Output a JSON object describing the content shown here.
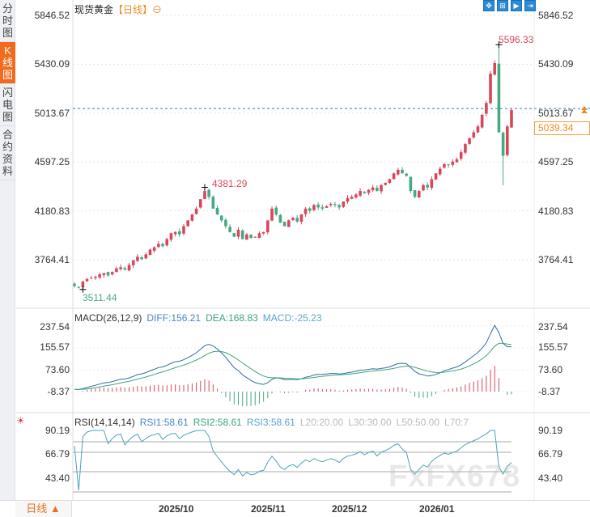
{
  "sidebar": {
    "tabs": [
      {
        "label": [
          "分",
          "时",
          "图"
        ]
      },
      {
        "label": [
          "K",
          "线",
          "图"
        ],
        "active": true
      },
      {
        "label": [
          "闪",
          "电",
          "图"
        ]
      },
      {
        "label": [
          "合",
          "约",
          "资",
          "料"
        ]
      }
    ]
  },
  "header": {
    "name": "现货黄金",
    "period": "【日线】",
    "period_icon": "⊖",
    "icons": [
      "move-icon",
      "zoom-fit-icon",
      "step-icon",
      "scroll-end-icon"
    ]
  },
  "price_axis": {
    "labels": [
      "5846.52",
      "5430.09",
      "5013.67",
      "4597.25",
      "4180.83",
      "3764.41"
    ],
    "values": [
      5846.52,
      5430.09,
      5013.67,
      4597.25,
      4180.83,
      3764.41
    ]
  },
  "current_price": "5039.34",
  "markers": {
    "high": "5596.33",
    "low": "3511.44",
    "mid_high": "4381.29"
  },
  "macd": {
    "title": "MACD(26,12,9)",
    "diff": "DIFF:156.21",
    "dea": "DEA:168.83",
    "macd": "MACD:-25.23",
    "axis": [
      "237.54",
      "155.57",
      "73.60",
      "-8.37"
    ]
  },
  "rsi": {
    "title": "RSI(14,14,14)",
    "rsi1": "RSI1:58.61",
    "rsi2": "RSI2:58.61",
    "rsi3": "RSI3:58.61",
    "l20": "L20:20.00",
    "l30": "L30:30.00",
    "l50": "L50:50.00",
    "l70": "L70:7",
    "axis": [
      "90.19",
      "66.79",
      "43.40"
    ]
  },
  "bottom": {
    "period_button": "日线 ▲",
    "dates": [
      "2025/10",
      "2025/11",
      "2025/12",
      "2026/01"
    ]
  },
  "watermark": "FxFX678",
  "colors": {
    "up": "#d9465a",
    "down": "#47a882",
    "accent": "#f26b1d",
    "diff": "#2f6f9f",
    "dea": "#3aa67a"
  },
  "chart_data": {
    "type": "candlestick",
    "ylim": [
      3764.41,
      5846.52
    ],
    "closes": [
      3540,
      3530,
      3580,
      3600,
      3610,
      3620,
      3640,
      3650,
      3630,
      3660,
      3690,
      3700,
      3680,
      3720,
      3760,
      3790,
      3770,
      3810,
      3850,
      3870,
      3900,
      3880,
      3940,
      3990,
      4000,
      3980,
      4050,
      4100,
      4150,
      4200,
      4280,
      4350,
      4300,
      4200,
      4150,
      4100,
      4050,
      4000,
      3960,
      4020,
      3940,
      3980,
      3950,
      3960,
      3990,
      4000,
      4100,
      4200,
      4150,
      4080,
      4050,
      4100,
      4120,
      4090,
      4150,
      4200,
      4180,
      4230,
      4210,
      4200,
      4220,
      4240,
      4230,
      4210,
      4260,
      4290,
      4300,
      4320,
      4350,
      4330,
      4360,
      4380,
      4350,
      4400,
      4420,
      4450,
      4500,
      4530,
      4500,
      4480,
      4350,
      4300,
      4350,
      4400,
      4380,
      4450,
      4500,
      4540,
      4580,
      4570,
      4600,
      4620,
      4680,
      4750,
      4800,
      4850,
      4900,
      5000,
      5100,
      5350,
      5440,
      4850,
      4650,
      4900,
      5039.34
    ],
    "date_ticks": [
      {
        "label": "2025/10",
        "index": 25
      },
      {
        "label": "2025/11",
        "index": 47
      },
      {
        "label": "2025/12",
        "index": 66
      },
      {
        "label": "2026/01",
        "index": 86
      }
    ]
  }
}
